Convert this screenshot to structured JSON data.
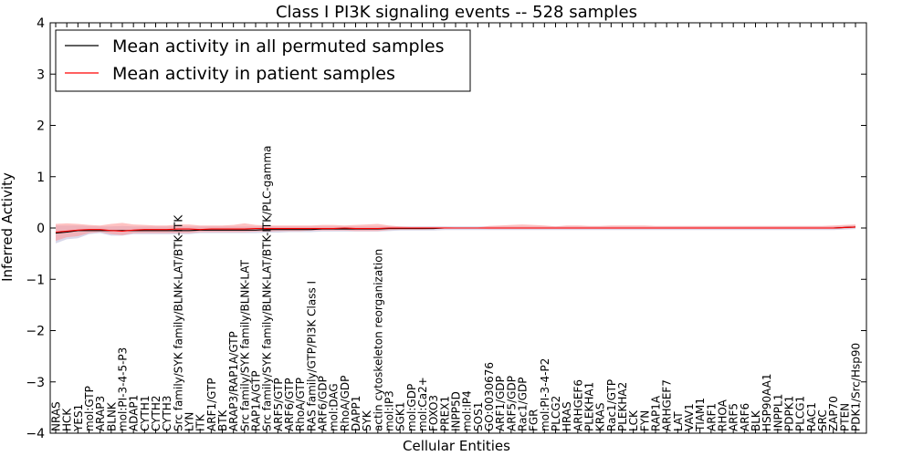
{
  "chart_data": {
    "type": "line",
    "title": "Class I PI3K signaling events -- 528 samples",
    "xlabel": "Cellular Entities",
    "ylabel": "Inferred Activity",
    "ylim": [
      -4,
      4
    ],
    "yticks": [
      -4,
      -3,
      -2,
      -1,
      0,
      1,
      2,
      3,
      4
    ],
    "grid": false,
    "legend_position": "top-left",
    "categories": [
      "NRAS",
      "HCK",
      "YES1",
      "mol:GTP",
      "ARAP3",
      "BLNK",
      "mol:PI-3-4-5-P3",
      "ADAP1",
      "CYTH1",
      "CYTH2",
      "CYTH3",
      "Src family/SYK family/BLNK-LAT/BTK-ITK",
      "LYN",
      "ITK",
      "ARF1/GTP",
      "BTK",
      "ARAP3/RAP1A/GTP",
      "Src family/SYK family/BLNK-LAT",
      "RAP1A/GTP",
      "Src family/SYK family/BLNK-LAT/BTK-ITK/PLC-gamma",
      "ARF5/GTP",
      "ARF6/GTP",
      "RhoA/GTP",
      "RAS family/GTP/PI3K Class I",
      "ARF6/GDP",
      "mol:DAG",
      "RhoA/GDP",
      "DAPP1",
      "SYK",
      "actin cytoskeleton reorganization",
      "mol:IP3",
      "SGK1",
      "mol:GDP",
      "mol:Ca2+",
      "FOXO3",
      "PREX1",
      "INPP5D",
      "mol:IP4",
      "SOS1",
      "GO:0030676",
      "ARF1/GDP",
      "ARF5/GDP",
      "Rac1/GDP",
      "FGR",
      "mol:PI-3-4-P2",
      "PLCG2",
      "HRAS",
      "ARHGEF6",
      "PLEKHA1",
      "KRAS",
      "Rac1/GTP",
      "PLEKHA2",
      "LCK",
      "FYN",
      "RAP1A",
      "ARHGEF7",
      "LAT",
      "VAV1",
      "TIAM1",
      "ARF1",
      "RHOA",
      "ARF5",
      "ARF6",
      "BLK",
      "HSP90AA1",
      "INPPL1",
      "PDPK1",
      "PLCG1",
      "RAC1",
      "SRC",
      "ZAP70",
      "PTEN",
      "PDK1/Src/Hsp90"
    ],
    "series": [
      {
        "name": "Mean activity in all permuted samples",
        "color": "#000000",
        "values": [
          -0.1,
          -0.08,
          -0.05,
          -0.05,
          -0.05,
          -0.05,
          -0.05,
          -0.05,
          -0.05,
          -0.05,
          -0.05,
          -0.05,
          -0.05,
          -0.04,
          -0.04,
          -0.04,
          -0.04,
          -0.04,
          -0.04,
          -0.03,
          -0.03,
          -0.03,
          -0.03,
          -0.03,
          -0.02,
          -0.02,
          -0.02,
          -0.02,
          -0.02,
          -0.02,
          -0.01,
          -0.01,
          -0.01,
          -0.01,
          -0.01,
          0,
          0,
          0,
          0,
          0,
          0,
          0,
          0,
          0,
          0,
          0,
          0,
          0,
          0,
          0,
          0,
          0,
          0,
          0,
          0,
          0,
          0,
          0,
          0,
          0,
          0,
          0,
          0,
          0,
          0,
          0,
          0,
          0,
          0,
          0,
          0,
          0.01,
          0.02
        ]
      },
      {
        "name": "Mean activity in patient samples",
        "color": "#ff0000",
        "values": [
          -0.08,
          -0.06,
          -0.04,
          -0.03,
          -0.03,
          -0.05,
          -0.06,
          -0.04,
          -0.03,
          -0.03,
          -0.03,
          -0.02,
          -0.02,
          -0.03,
          -0.02,
          -0.02,
          -0.02,
          -0.02,
          -0.01,
          -0.01,
          -0.01,
          -0.01,
          -0.01,
          -0.01,
          -0.01,
          -0.01,
          0,
          -0.01,
          -0.01,
          -0.01,
          0,
          0,
          0,
          0,
          0,
          0,
          0,
          0,
          0,
          0,
          0,
          0,
          0,
          0,
          0,
          0,
          0,
          0,
          0,
          0,
          0,
          0,
          0,
          0,
          0,
          0,
          0,
          0,
          0,
          0,
          0,
          0,
          0,
          0,
          0,
          0,
          0,
          0,
          0,
          0,
          0,
          0.01,
          0.02
        ]
      }
    ],
    "bands": [
      {
        "series": "Mean activity in all permuted samples",
        "color": "#b8b8d8",
        "lower": [
          -0.3,
          -0.22,
          -0.2,
          -0.12,
          -0.1,
          -0.15,
          -0.15,
          -0.12,
          -0.12,
          -0.12,
          -0.12,
          -0.12,
          -0.12,
          -0.1,
          -0.1,
          -0.1,
          -0.1,
          -0.1,
          -0.1,
          -0.09,
          -0.09,
          -0.08,
          -0.08,
          -0.08,
          -0.07,
          -0.07,
          -0.07,
          -0.07,
          -0.07,
          -0.07,
          -0.06,
          -0.05,
          -0.05,
          -0.05,
          -0.05,
          -0.04,
          -0.04,
          -0.04,
          -0.04,
          -0.04,
          -0.04,
          -0.04,
          -0.04,
          -0.04,
          -0.04,
          -0.04,
          -0.04,
          -0.04,
          -0.04,
          -0.04,
          -0.04,
          -0.04,
          -0.04,
          -0.04,
          -0.04,
          -0.04,
          -0.04,
          -0.04,
          -0.04,
          -0.04,
          -0.04,
          -0.04,
          -0.04,
          -0.04,
          -0.04,
          -0.04,
          -0.04,
          -0.04,
          -0.04,
          -0.04,
          -0.04,
          -0.03,
          -0.02
        ],
        "upper": [
          0.05,
          0.05,
          0.05,
          0.04,
          0.03,
          0.03,
          0.04,
          0.03,
          0.03,
          0.03,
          0.03,
          0.03,
          0.03,
          0.03,
          0.03,
          0.03,
          0.03,
          0.03,
          0.03,
          0.03,
          0.03,
          0.03,
          0.03,
          0.03,
          0.03,
          0.03,
          0.03,
          0.03,
          0.03,
          0.03,
          0.03,
          0.03,
          0.03,
          0.03,
          0.03,
          0.03,
          0.03,
          0.03,
          0.03,
          0.03,
          0.03,
          0.03,
          0.03,
          0.03,
          0.03,
          0.03,
          0.03,
          0.03,
          0.03,
          0.03,
          0.03,
          0.03,
          0.03,
          0.03,
          0.03,
          0.03,
          0.03,
          0.03,
          0.03,
          0.03,
          0.03,
          0.03,
          0.03,
          0.03,
          0.03,
          0.03,
          0.03,
          0.03,
          0.03,
          0.03,
          0.03,
          0.04,
          0.05
        ]
      },
      {
        "series": "Mean activity in patient samples",
        "color": "#ff9999",
        "lower": [
          -0.25,
          -0.18,
          -0.16,
          -0.1,
          -0.08,
          -0.12,
          -0.14,
          -0.1,
          -0.1,
          -0.1,
          -0.1,
          -0.1,
          -0.1,
          -0.08,
          -0.08,
          -0.08,
          -0.08,
          -0.08,
          -0.07,
          -0.07,
          -0.06,
          -0.06,
          -0.06,
          -0.05,
          -0.05,
          -0.05,
          -0.05,
          -0.06,
          -0.06,
          -0.06,
          -0.04,
          -0.03,
          -0.03,
          -0.03,
          -0.02,
          -0.01,
          -0.01,
          -0.01,
          -0.01,
          -0.02,
          -0.02,
          -0.02,
          -0.02,
          -0.02,
          -0.02,
          -0.02,
          -0.02,
          -0.02,
          -0.02,
          -0.02,
          -0.02,
          -0.02,
          -0.02,
          -0.02,
          -0.02,
          -0.02,
          -0.02,
          -0.02,
          -0.02,
          -0.02,
          -0.02,
          -0.02,
          -0.02,
          -0.02,
          -0.02,
          -0.02,
          -0.02,
          -0.02,
          -0.02,
          -0.02,
          -0.02,
          -0.01,
          0
        ],
        "upper": [
          0.08,
          0.09,
          0.08,
          0.06,
          0.05,
          0.08,
          0.1,
          0.07,
          0.06,
          0.05,
          0.05,
          0.07,
          0.07,
          0.05,
          0.05,
          0.05,
          0.06,
          0.09,
          0.06,
          0.05,
          0.05,
          0.05,
          0.05,
          0.05,
          0.06,
          0.06,
          0.05,
          0.06,
          0.07,
          0.08,
          0.05,
          0.03,
          0.02,
          0.02,
          0.02,
          0.02,
          0.01,
          0.01,
          0.01,
          0.04,
          0.05,
          0.06,
          0.07,
          0.06,
          0.05,
          0.03,
          0.05,
          0.05,
          0.04,
          0.04,
          0.05,
          0.05,
          0.05,
          0.05,
          0.04,
          0.04,
          0.04,
          0.04,
          0.04,
          0.04,
          0.04,
          0.04,
          0.04,
          0.04,
          0.04,
          0.04,
          0.04,
          0.04,
          0.04,
          0.04,
          0.05,
          0.06,
          0.07
        ]
      }
    ]
  }
}
